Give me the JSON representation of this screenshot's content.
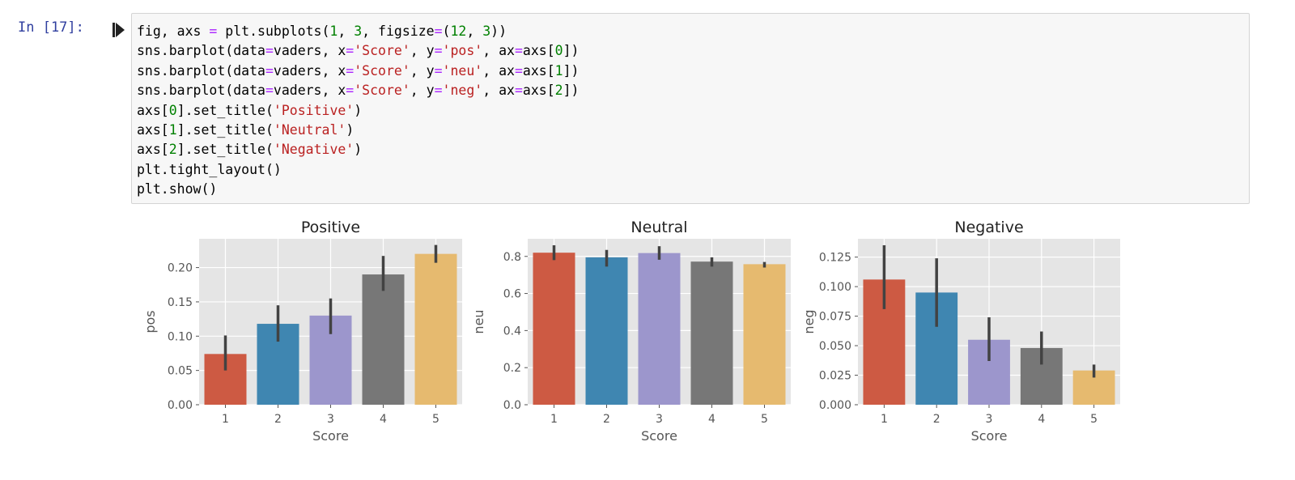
{
  "cell": {
    "prompt": "In [17]:",
    "code_lines": [
      [
        {
          "t": "fig, axs "
        },
        {
          "t": "=",
          "c": "op"
        },
        {
          "t": " plt.subplots("
        },
        {
          "t": "1",
          "c": "num"
        },
        {
          "t": ", "
        },
        {
          "t": "3",
          "c": "num"
        },
        {
          "t": ", figsize"
        },
        {
          "t": "=",
          "c": "op"
        },
        {
          "t": "("
        },
        {
          "t": "12",
          "c": "num"
        },
        {
          "t": ", "
        },
        {
          "t": "3",
          "c": "num"
        },
        {
          "t": "))"
        }
      ],
      [
        {
          "t": "sns.barplot(data"
        },
        {
          "t": "=",
          "c": "op"
        },
        {
          "t": "vaders, x"
        },
        {
          "t": "=",
          "c": "op"
        },
        {
          "t": "'Score'",
          "c": "str"
        },
        {
          "t": ", y"
        },
        {
          "t": "=",
          "c": "op"
        },
        {
          "t": "'pos'",
          "c": "str"
        },
        {
          "t": ", ax"
        },
        {
          "t": "=",
          "c": "op"
        },
        {
          "t": "axs["
        },
        {
          "t": "0",
          "c": "num"
        },
        {
          "t": "])"
        }
      ],
      [
        {
          "t": "sns.barplot(data"
        },
        {
          "t": "=",
          "c": "op"
        },
        {
          "t": "vaders, x"
        },
        {
          "t": "=",
          "c": "op"
        },
        {
          "t": "'Score'",
          "c": "str"
        },
        {
          "t": ", y"
        },
        {
          "t": "=",
          "c": "op"
        },
        {
          "t": "'neu'",
          "c": "str"
        },
        {
          "t": ", ax"
        },
        {
          "t": "=",
          "c": "op"
        },
        {
          "t": "axs["
        },
        {
          "t": "1",
          "c": "num"
        },
        {
          "t": "])"
        }
      ],
      [
        {
          "t": "sns.barplot(data"
        },
        {
          "t": "=",
          "c": "op"
        },
        {
          "t": "vaders, x"
        },
        {
          "t": "=",
          "c": "op"
        },
        {
          "t": "'Score'",
          "c": "str"
        },
        {
          "t": ", y"
        },
        {
          "t": "=",
          "c": "op"
        },
        {
          "t": "'neg'",
          "c": "str"
        },
        {
          "t": ", ax"
        },
        {
          "t": "=",
          "c": "op"
        },
        {
          "t": "axs["
        },
        {
          "t": "2",
          "c": "num"
        },
        {
          "t": "])"
        }
      ],
      [
        {
          "t": "axs["
        },
        {
          "t": "0",
          "c": "num"
        },
        {
          "t": "].set_title("
        },
        {
          "t": "'Positive'",
          "c": "str"
        },
        {
          "t": ")"
        }
      ],
      [
        {
          "t": "axs["
        },
        {
          "t": "1",
          "c": "num"
        },
        {
          "t": "].set_title("
        },
        {
          "t": "'Neutral'",
          "c": "str"
        },
        {
          "t": ")"
        }
      ],
      [
        {
          "t": "axs["
        },
        {
          "t": "2",
          "c": "num"
        },
        {
          "t": "].set_title("
        },
        {
          "t": "'Negative'",
          "c": "str"
        },
        {
          "t": ")"
        }
      ],
      [
        {
          "t": "plt.tight_layout()"
        }
      ],
      [
        {
          "t": "plt.show()"
        }
      ]
    ]
  },
  "colors": {
    "prompt": "#303f9f",
    "keyword_op": "#aa22ff",
    "string": "#ba2121",
    "number": "#008000",
    "axes_bg": "#e5e5e5",
    "grid": "#ffffff",
    "errorbar": "#424242",
    "bars": [
      "#cd5a43",
      "#3f86b1",
      "#9c96cc",
      "#777777",
      "#e6ba6f"
    ]
  },
  "run_icon": "run-indicator-icon",
  "chart_data": [
    {
      "type": "bar",
      "title": "Positive",
      "xlabel": "Score",
      "ylabel": "pos",
      "categories": [
        "1",
        "2",
        "3",
        "4",
        "5"
      ],
      "values": [
        0.074,
        0.118,
        0.13,
        0.19,
        0.22
      ],
      "error_low": [
        0.05,
        0.092,
        0.103,
        0.166,
        0.207
      ],
      "error_high": [
        0.101,
        0.145,
        0.155,
        0.217,
        0.233
      ],
      "ylim": [
        0,
        0.242
      ],
      "yticks": [
        0.0,
        0.05,
        0.1,
        0.15,
        0.2
      ],
      "ytick_labels": [
        "0.00",
        "0.05",
        "0.10",
        "0.15",
        "0.20"
      ],
      "grid": true
    },
    {
      "type": "bar",
      "title": "Neutral",
      "xlabel": "Score",
      "ylabel": "neu",
      "categories": [
        "1",
        "2",
        "3",
        "4",
        "5"
      ],
      "values": [
        0.82,
        0.795,
        0.818,
        0.772,
        0.758
      ],
      "error_low": [
        0.78,
        0.745,
        0.782,
        0.745,
        0.74
      ],
      "error_high": [
        0.86,
        0.835,
        0.855,
        0.795,
        0.77
      ],
      "ylim": [
        0,
        0.895
      ],
      "yticks": [
        0.0,
        0.2,
        0.4,
        0.6,
        0.8
      ],
      "ytick_labels": [
        "0.0",
        "0.2",
        "0.4",
        "0.6",
        "0.8"
      ],
      "grid": true
    },
    {
      "type": "bar",
      "title": "Negative",
      "xlabel": "Score",
      "ylabel": "neg",
      "categories": [
        "1",
        "2",
        "3",
        "4",
        "5"
      ],
      "values": [
        0.106,
        0.095,
        0.055,
        0.048,
        0.029
      ],
      "error_low": [
        0.081,
        0.066,
        0.037,
        0.034,
        0.023
      ],
      "error_high": [
        0.135,
        0.124,
        0.074,
        0.062,
        0.034
      ],
      "ylim": [
        0,
        0.1405
      ],
      "yticks": [
        0.0,
        0.025,
        0.05,
        0.075,
        0.1,
        0.125
      ],
      "ytick_labels": [
        "0.000",
        "0.025",
        "0.050",
        "0.075",
        "0.100",
        "0.125"
      ],
      "grid": true
    }
  ]
}
